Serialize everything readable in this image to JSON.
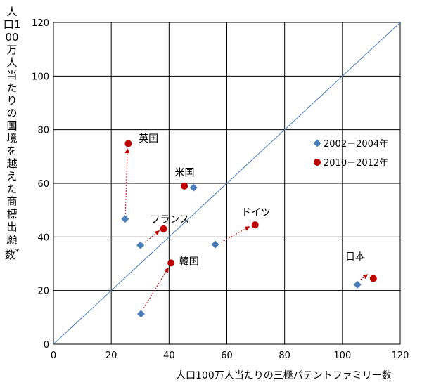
{
  "chart_data": {
    "type": "scatter",
    "xlabel": "人口100万人当たりの三極パテントファミリー数",
    "ylabel": "人口100万人当たりの国境を越えた商標出願数",
    "ylabel_marker": "*",
    "xlim": [
      0,
      120
    ],
    "ylim": [
      0,
      120
    ],
    "x_ticks": [
      0,
      20,
      40,
      60,
      80,
      100,
      120
    ],
    "y_ticks": [
      0,
      20,
      40,
      60,
      80,
      100,
      120
    ],
    "grid": true,
    "diagonal": true,
    "legend_position": "right",
    "series": [
      {
        "name": "2002－2004年",
        "color": "#4a7ebb",
        "marker": "diamond",
        "points": [
          {
            "x": 24.8,
            "y": 46.7
          },
          {
            "x": 48.5,
            "y": 58.4
          },
          {
            "x": 30.1,
            "y": 36.9
          },
          {
            "x": 56.0,
            "y": 37.2
          },
          {
            "x": 30.3,
            "y": 11.3
          },
          {
            "x": 105.2,
            "y": 22.2
          }
        ]
      },
      {
        "name": "2010－2012年",
        "color": "#c00000",
        "marker": "circle",
        "points": [
          {
            "x": 25.9,
            "y": 74.8
          },
          {
            "x": 45.3,
            "y": 59.0
          },
          {
            "x": 38.1,
            "y": 43.0
          },
          {
            "x": 69.8,
            "y": 44.5
          },
          {
            "x": 40.7,
            "y": 30.3
          },
          {
            "x": 110.7,
            "y": 24.5
          }
        ]
      }
    ],
    "arrows": [
      {
        "from": {
          "x": 24.9,
          "y": 48.5
        },
        "to": {
          "x": 25.6,
          "y": 72.8
        }
      },
      {
        "from": {
          "x": 31.7,
          "y": 38.0
        },
        "to": {
          "x": 36.6,
          "y": 42.3
        }
      },
      {
        "from": {
          "x": 58.0,
          "y": 38.0
        },
        "to": {
          "x": 67.8,
          "y": 43.8
        }
      },
      {
        "from": {
          "x": 31.2,
          "y": 13.4
        },
        "to": {
          "x": 39.7,
          "y": 28.4
        }
      },
      {
        "from": {
          "x": 106.2,
          "y": 24.0
        },
        "to": {
          "x": 108.7,
          "y": 26.0
        }
      }
    ],
    "annotations": [
      {
        "text": "英国",
        "x": 29.5,
        "y": 75.5
      },
      {
        "text": "米国",
        "x": 42.0,
        "y": 62.8
      },
      {
        "text": "フランス",
        "x": 33.5,
        "y": 45.3
      },
      {
        "text": "ドイツ",
        "x": 65.0,
        "y": 48.0
      },
      {
        "text": "韓国",
        "x": 43.5,
        "y": 29.6
      },
      {
        "text": "日本",
        "x": 101.0,
        "y": 31.5
      }
    ]
  }
}
